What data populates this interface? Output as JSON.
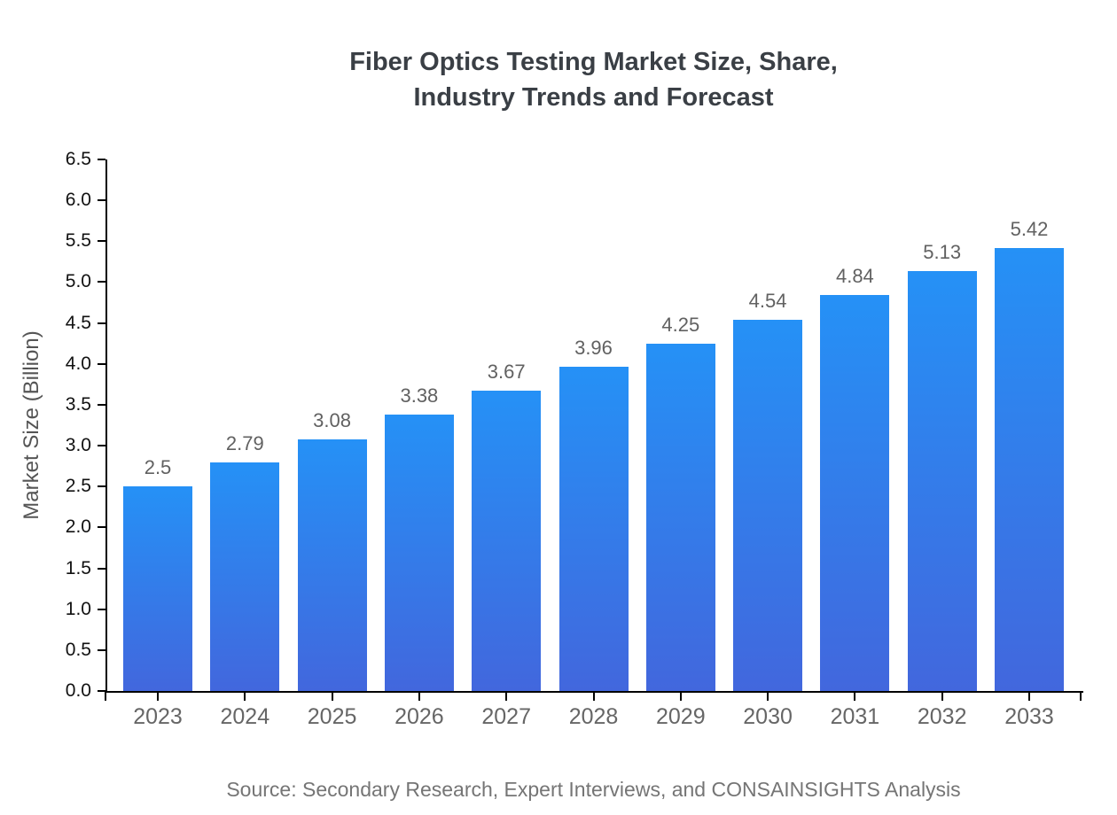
{
  "chart": {
    "title_line1": "Fiber Optics Testing Market Size, Share,",
    "title_line2": "Industry Trends and Forecast",
    "y_axis_label": "Market Size (Billion)",
    "source": "Source: Secondary Research, Expert Interviews, and CONSAINSIGHTS Analysis"
  },
  "chart_data": {
    "type": "bar",
    "title": "Fiber Optics Testing Market Size, Share, Industry Trends and Forecast",
    "categories": [
      "2023",
      "2024",
      "2025",
      "2026",
      "2027",
      "2028",
      "2029",
      "2030",
      "2031",
      "2032",
      "2033"
    ],
    "values": [
      2.5,
      2.79,
      3.08,
      3.38,
      3.67,
      3.96,
      4.25,
      4.54,
      4.84,
      5.13,
      5.42
    ],
    "value_labels": [
      "2.5",
      "2.79",
      "3.08",
      "3.38",
      "3.67",
      "3.96",
      "4.25",
      "4.54",
      "4.84",
      "5.13",
      "5.42"
    ],
    "xlabel": "",
    "ylabel": "Market Size (Billion)",
    "ylim": [
      0,
      6.5
    ],
    "ytick_step": 0.5,
    "grid": false,
    "legend": false,
    "colors": {
      "bar_gradient_top": "#2591f6",
      "bar_gradient_bottom": "#4267dd",
      "axis": "#000000",
      "title_text": "#3a3f45",
      "ytick_label": "#111111",
      "xtick_label": "#666666",
      "value_label": "#616161",
      "source_text": "#757575",
      "background": "#ffffff"
    }
  }
}
